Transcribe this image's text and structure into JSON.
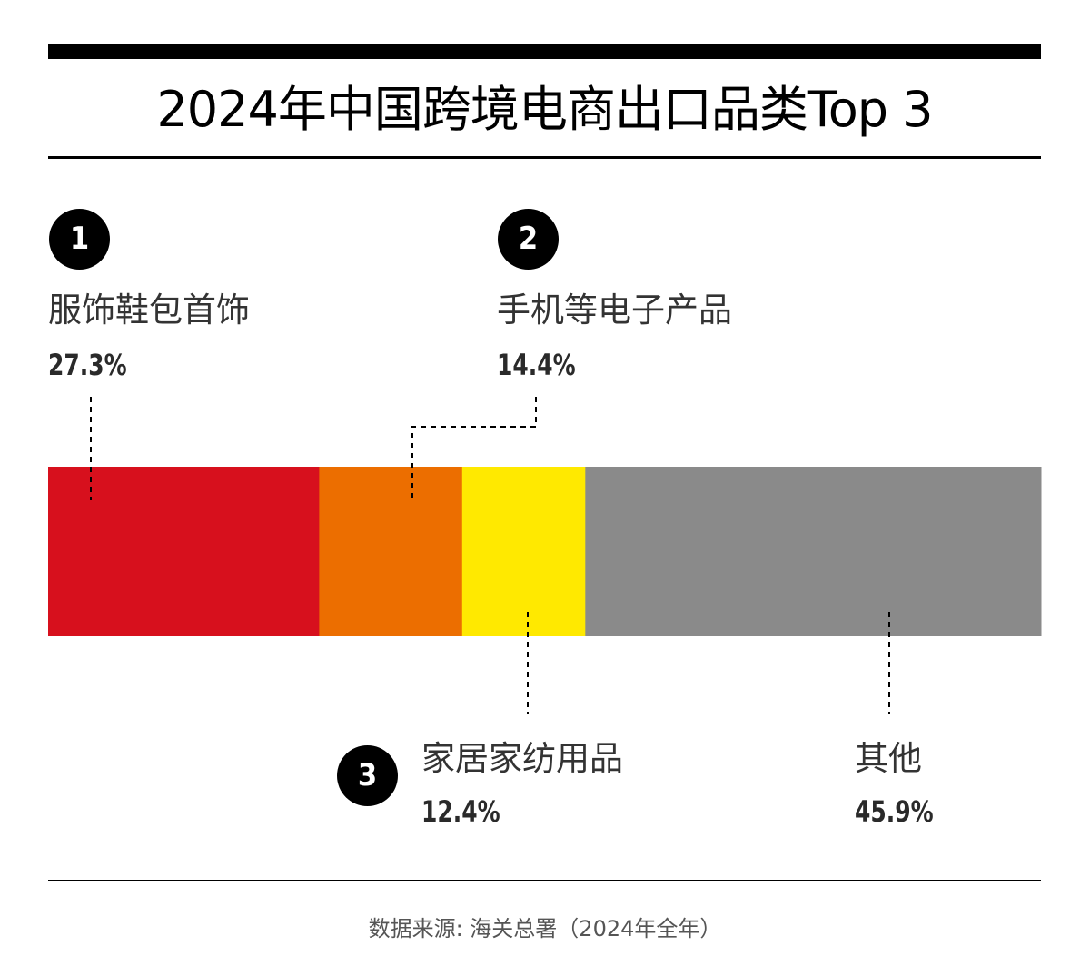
{
  "title": "2024年中国跨境电商出口品类Top 3",
  "source": "数据来源: 海关总署（2024年全年）",
  "chart_data": {
    "type": "bar",
    "orientation": "horizontal-stacked",
    "title": "2024年中国跨境电商出口品类Top 3",
    "total": 100,
    "segments": [
      {
        "rank": "1",
        "name": "服饰鞋包首饰",
        "value": 27.3,
        "label": "27.3%",
        "color": "#D7101D"
      },
      {
        "rank": "2",
        "name": "手机等电子产品",
        "value": 14.4,
        "label": "14.4%",
        "color": "#EC6E00"
      },
      {
        "rank": "3",
        "name": "家居家纺用品",
        "value": 12.4,
        "label": "12.4%",
        "color": "#FFE900"
      },
      {
        "rank": "",
        "name": "其他",
        "value": 45.9,
        "label": "45.9%",
        "color": "#8A8A8A"
      }
    ]
  }
}
